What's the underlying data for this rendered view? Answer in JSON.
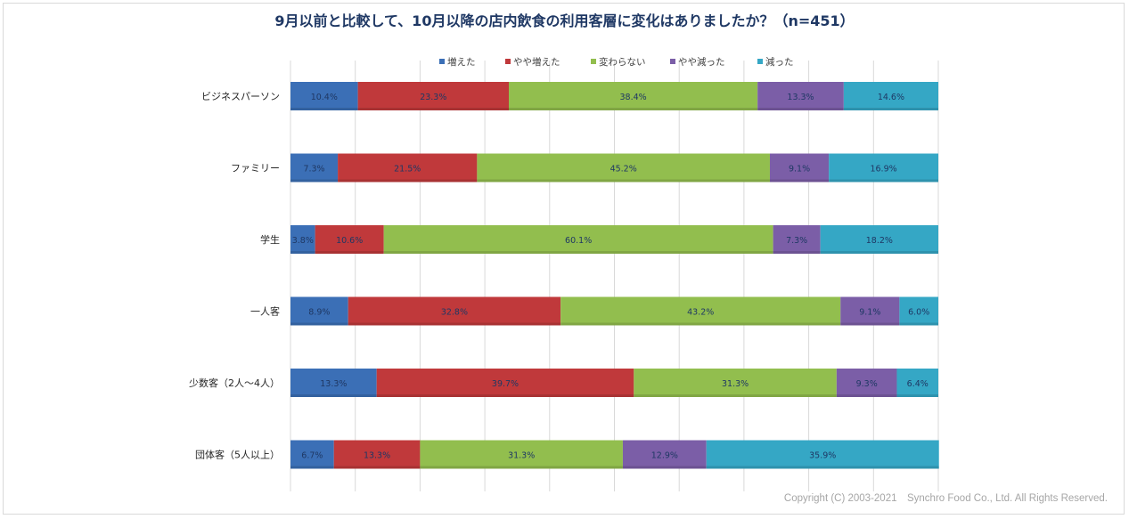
{
  "chart_data": {
    "type": "bar",
    "orientation": "horizontal",
    "stacked": true,
    "title": "9月以前と比較して、10月以降の店内飲食の利用客層に変化はありましたか？（n=451）",
    "categories": [
      "ビジネスパーソン",
      "ファミリー",
      "学生",
      "一人客",
      "少数客（2人〜4人）",
      "団体客（5人以上）"
    ],
    "series": [
      {
        "name": "増えた",
        "color": "#3b6fb6",
        "values": [
          10.4,
          7.3,
          3.8,
          8.9,
          13.3,
          6.7
        ],
        "labels": [
          "10.4%",
          "7.3%",
          "3.8%",
          "8.9%",
          "13.3%",
          "6.7%"
        ]
      },
      {
        "name": "やや増えた",
        "color": "#c0393b",
        "values": [
          23.3,
          21.5,
          10.6,
          32.8,
          39.7,
          13.3
        ],
        "labels": [
          "23.3%",
          "21.5%",
          "10.6%",
          "32.8%",
          "39.7%",
          "13.3%"
        ]
      },
      {
        "name": "変わらない",
        "color": "#92be4e",
        "values": [
          38.4,
          45.2,
          60.1,
          43.2,
          31.3,
          31.3
        ],
        "labels": [
          "38.4%",
          "45.2%",
          "60.1%",
          "43.2%",
          "31.3%",
          "31.3%"
        ]
      },
      {
        "name": "やや減った",
        "color": "#7b5ea7",
        "values": [
          13.3,
          9.1,
          7.3,
          9.1,
          9.3,
          12.9
        ],
        "labels": [
          "13.3%",
          "9.1%",
          "7.3%",
          "9.1%",
          "9.3%",
          "12.9%"
        ]
      },
      {
        "name": "減った",
        "color": "#35a7c5",
        "values": [
          14.6,
          16.9,
          18.2,
          6.0,
          6.4,
          35.9
        ],
        "labels": [
          "14.6%",
          "16.9%",
          "18.2%",
          "6.0%",
          "6.4%",
          "35.9%"
        ]
      }
    ],
    "xlim": [
      0,
      100
    ],
    "grid": true,
    "legend": "top"
  },
  "copyright": "Copyright (C) 2003-2021　Synchro Food Co., Ltd. All Rights Reserved."
}
